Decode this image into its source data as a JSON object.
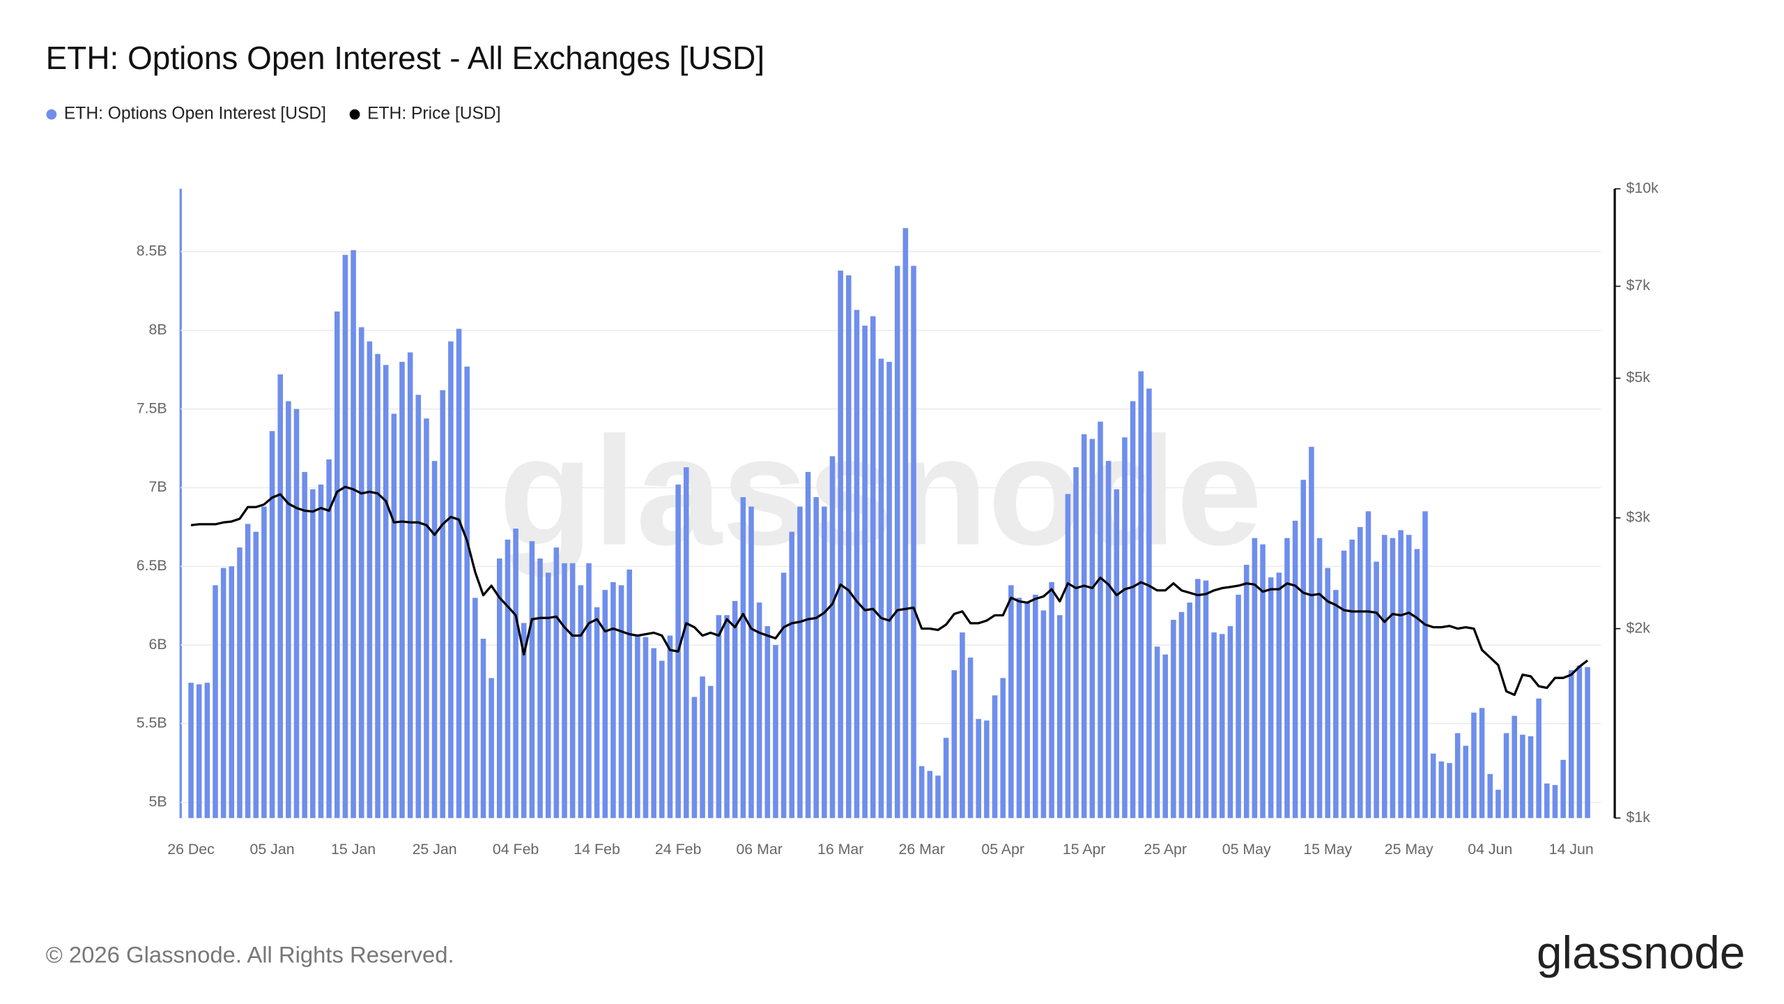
{
  "chart_data": {
    "type": "bar",
    "title": "ETH: Options Open Interest - All Exchanges [USD]",
    "categories": [
      "26 Dec",
      null,
      null,
      null,
      null,
      null,
      null,
      null,
      null,
      null,
      "05 Jan",
      null,
      null,
      null,
      null,
      null,
      null,
      null,
      null,
      null,
      "15 Jan",
      null,
      null,
      null,
      null,
      null,
      null,
      null,
      null,
      null,
      "25 Jan",
      null,
      null,
      null,
      null,
      null,
      null,
      null,
      null,
      null,
      "04 Feb",
      null,
      null,
      null,
      null,
      null,
      null,
      null,
      null,
      null,
      "14 Feb",
      null,
      null,
      null,
      null,
      null,
      null,
      null,
      null,
      null,
      "24 Feb",
      null,
      null,
      null,
      null,
      null,
      null,
      null,
      null,
      null,
      "06 Mar",
      null,
      null,
      null,
      null,
      null,
      null,
      null,
      null,
      null,
      "16 Mar",
      null,
      null,
      null,
      null,
      null,
      null,
      null,
      null,
      null,
      "26 Mar",
      null,
      null,
      null,
      null,
      null,
      null,
      null,
      null,
      null,
      "05 Apr",
      null,
      null,
      null,
      null,
      null,
      null,
      null,
      null,
      null,
      "15 Apr",
      null,
      null,
      null,
      null,
      null,
      null,
      null,
      null,
      null,
      "25 Apr",
      null,
      null,
      null,
      null,
      null,
      null,
      null,
      null,
      null,
      "05 May",
      null,
      null,
      null,
      null,
      null,
      null,
      null,
      null,
      null,
      "15 May",
      null,
      null,
      null,
      null,
      null,
      null,
      null,
      null,
      null,
      "25 May",
      null,
      null,
      null,
      null,
      null,
      null,
      null,
      null,
      null,
      "04 Jun",
      null,
      null,
      null,
      null,
      null,
      null,
      null,
      null,
      null,
      "14 Jun",
      null,
      null
    ],
    "series": [
      {
        "name": "ETH: Options Open Interest [USD]",
        "color": "#6f8eec",
        "type": "bar",
        "values": [
          5.76,
          5.75,
          5.76,
          6.38,
          6.49,
          6.5,
          6.62,
          6.77,
          6.72,
          6.88,
          7.36,
          7.72,
          7.55,
          7.5,
          7.1,
          6.99,
          7.02,
          7.18,
          8.12,
          8.48,
          8.51,
          8.02,
          7.93,
          7.85,
          7.78,
          7.47,
          7.8,
          7.86,
          7.59,
          7.44,
          7.17,
          7.62,
          7.93,
          8.01,
          7.77,
          6.3,
          6.04,
          5.79,
          6.55,
          6.67,
          6.74,
          6.14,
          6.66,
          6.55,
          6.46,
          6.62,
          6.52,
          6.52,
          6.38,
          6.52,
          6.24,
          6.35,
          6.4,
          6.38,
          6.48,
          6.06,
          6.05,
          5.98,
          5.9,
          6.06,
          7.02,
          7.13,
          5.67,
          5.8,
          5.74,
          6.19,
          6.19,
          6.28,
          6.94,
          6.88,
          6.27,
          6.12,
          6.0,
          6.46,
          6.72,
          6.88,
          7.1,
          6.94,
          6.88,
          7.2,
          8.38,
          8.35,
          8.13,
          8.03,
          8.09,
          7.82,
          7.8,
          8.41,
          8.65,
          8.41,
          5.23,
          5.2,
          5.17,
          5.41,
          5.84,
          6.08,
          5.92,
          5.53,
          5.52,
          5.68,
          5.79,
          6.38,
          6.3,
          6.27,
          6.32,
          6.22,
          6.4,
          6.19,
          6.96,
          7.13,
          7.34,
          7.31,
          7.42,
          7.17,
          6.99,
          7.32,
          7.55,
          7.74,
          7.63,
          5.99,
          5.94,
          6.16,
          6.21,
          6.27,
          6.42,
          6.41,
          6.08,
          6.07,
          6.12,
          6.32,
          6.51,
          6.68,
          6.64,
          6.43,
          6.46,
          6.68,
          6.79,
          7.05,
          7.26,
          6.68,
          6.49,
          6.35,
          6.6,
          6.67,
          6.75,
          6.85,
          6.53,
          6.7,
          6.68,
          6.73,
          6.7,
          6.61,
          6.85,
          5.31,
          5.26,
          5.25,
          5.44,
          5.36,
          5.57,
          5.6,
          5.18,
          5.08,
          5.44,
          5.55,
          5.43,
          5.42,
          5.66,
          5.12,
          5.11,
          5.27,
          5.84,
          5.87,
          5.86
        ]
      },
      {
        "name": "ETH: Price [USD]",
        "color": "#000000",
        "type": "line",
        "axis": "y2",
        "values": [
          2920,
          2930,
          2930,
          2930,
          2950,
          2960,
          2990,
          3120,
          3120,
          3150,
          3230,
          3270,
          3160,
          3110,
          3080,
          3070,
          3110,
          3080,
          3300,
          3360,
          3330,
          3280,
          3300,
          3280,
          3190,
          2950,
          2960,
          2950,
          2950,
          2920,
          2820,
          2930,
          3010,
          2980,
          2760,
          2460,
          2260,
          2340,
          2240,
          2170,
          2100,
          1820,
          2070,
          2080,
          2080,
          2090,
          2010,
          1950,
          1950,
          2040,
          2070,
          1980,
          2000,
          1980,
          1960,
          1950,
          1960,
          1970,
          1950,
          1850,
          1840,
          2040,
          2010,
          1950,
          1970,
          1950,
          2070,
          2010,
          2110,
          2000,
          1970,
          1950,
          1930,
          2010,
          2040,
          2050,
          2070,
          2080,
          2120,
          2190,
          2350,
          2300,
          2210,
          2140,
          2150,
          2080,
          2060,
          2140,
          2150,
          2160,
          2000,
          2000,
          1990,
          2030,
          2110,
          2130,
          2040,
          2040,
          2060,
          2100,
          2100,
          2240,
          2210,
          2200,
          2230,
          2250,
          2310,
          2210,
          2360,
          2320,
          2340,
          2320,
          2410,
          2350,
          2260,
          2310,
          2330,
          2370,
          2340,
          2300,
          2300,
          2360,
          2300,
          2280,
          2260,
          2270,
          2300,
          2320,
          2330,
          2340,
          2360,
          2350,
          2290,
          2310,
          2310,
          2360,
          2340,
          2280,
          2260,
          2270,
          2210,
          2180,
          2140,
          2130,
          2130,
          2130,
          2120,
          2050,
          2110,
          2100,
          2120,
          2080,
          2030,
          2010,
          2010,
          2020,
          2000,
          2010,
          2000,
          1850,
          1800,
          1750,
          1590,
          1570,
          1690,
          1680,
          1620,
          1610,
          1670,
          1670,
          1690,
          1740,
          1780
        ]
      }
    ],
    "ylim": [
      4.9,
      8.9
    ],
    "yticks": [
      {
        "value": 5,
        "label": "5B"
      },
      {
        "value": 5.5,
        "label": "5.5B"
      },
      {
        "value": 6,
        "label": "6B"
      },
      {
        "value": 6.5,
        "label": "6.5B"
      },
      {
        "value": 7,
        "label": "7B"
      },
      {
        "value": 7.5,
        "label": "7.5B"
      },
      {
        "value": 8,
        "label": "8B"
      },
      {
        "value": 8.5,
        "label": "8.5B"
      }
    ],
    "y2lim": [
      1000,
      10000
    ],
    "y2scale": "log",
    "y2ticks": [
      {
        "value": 1000,
        "label": "$1k"
      },
      {
        "value": 2000,
        "label": "$2k"
      },
      {
        "value": 3000,
        "label": "$3k"
      },
      {
        "value": 5000,
        "label": "$5k"
      },
      {
        "value": 7000,
        "label": "$7k"
      },
      {
        "value": 10000,
        "label": "$10k"
      }
    ],
    "grid": true,
    "legend": "top-left",
    "watermark": "glassnode"
  },
  "footer": {
    "copyright": "© 2026 Glassnode. All Rights Reserved.",
    "logo": "glassnode"
  }
}
